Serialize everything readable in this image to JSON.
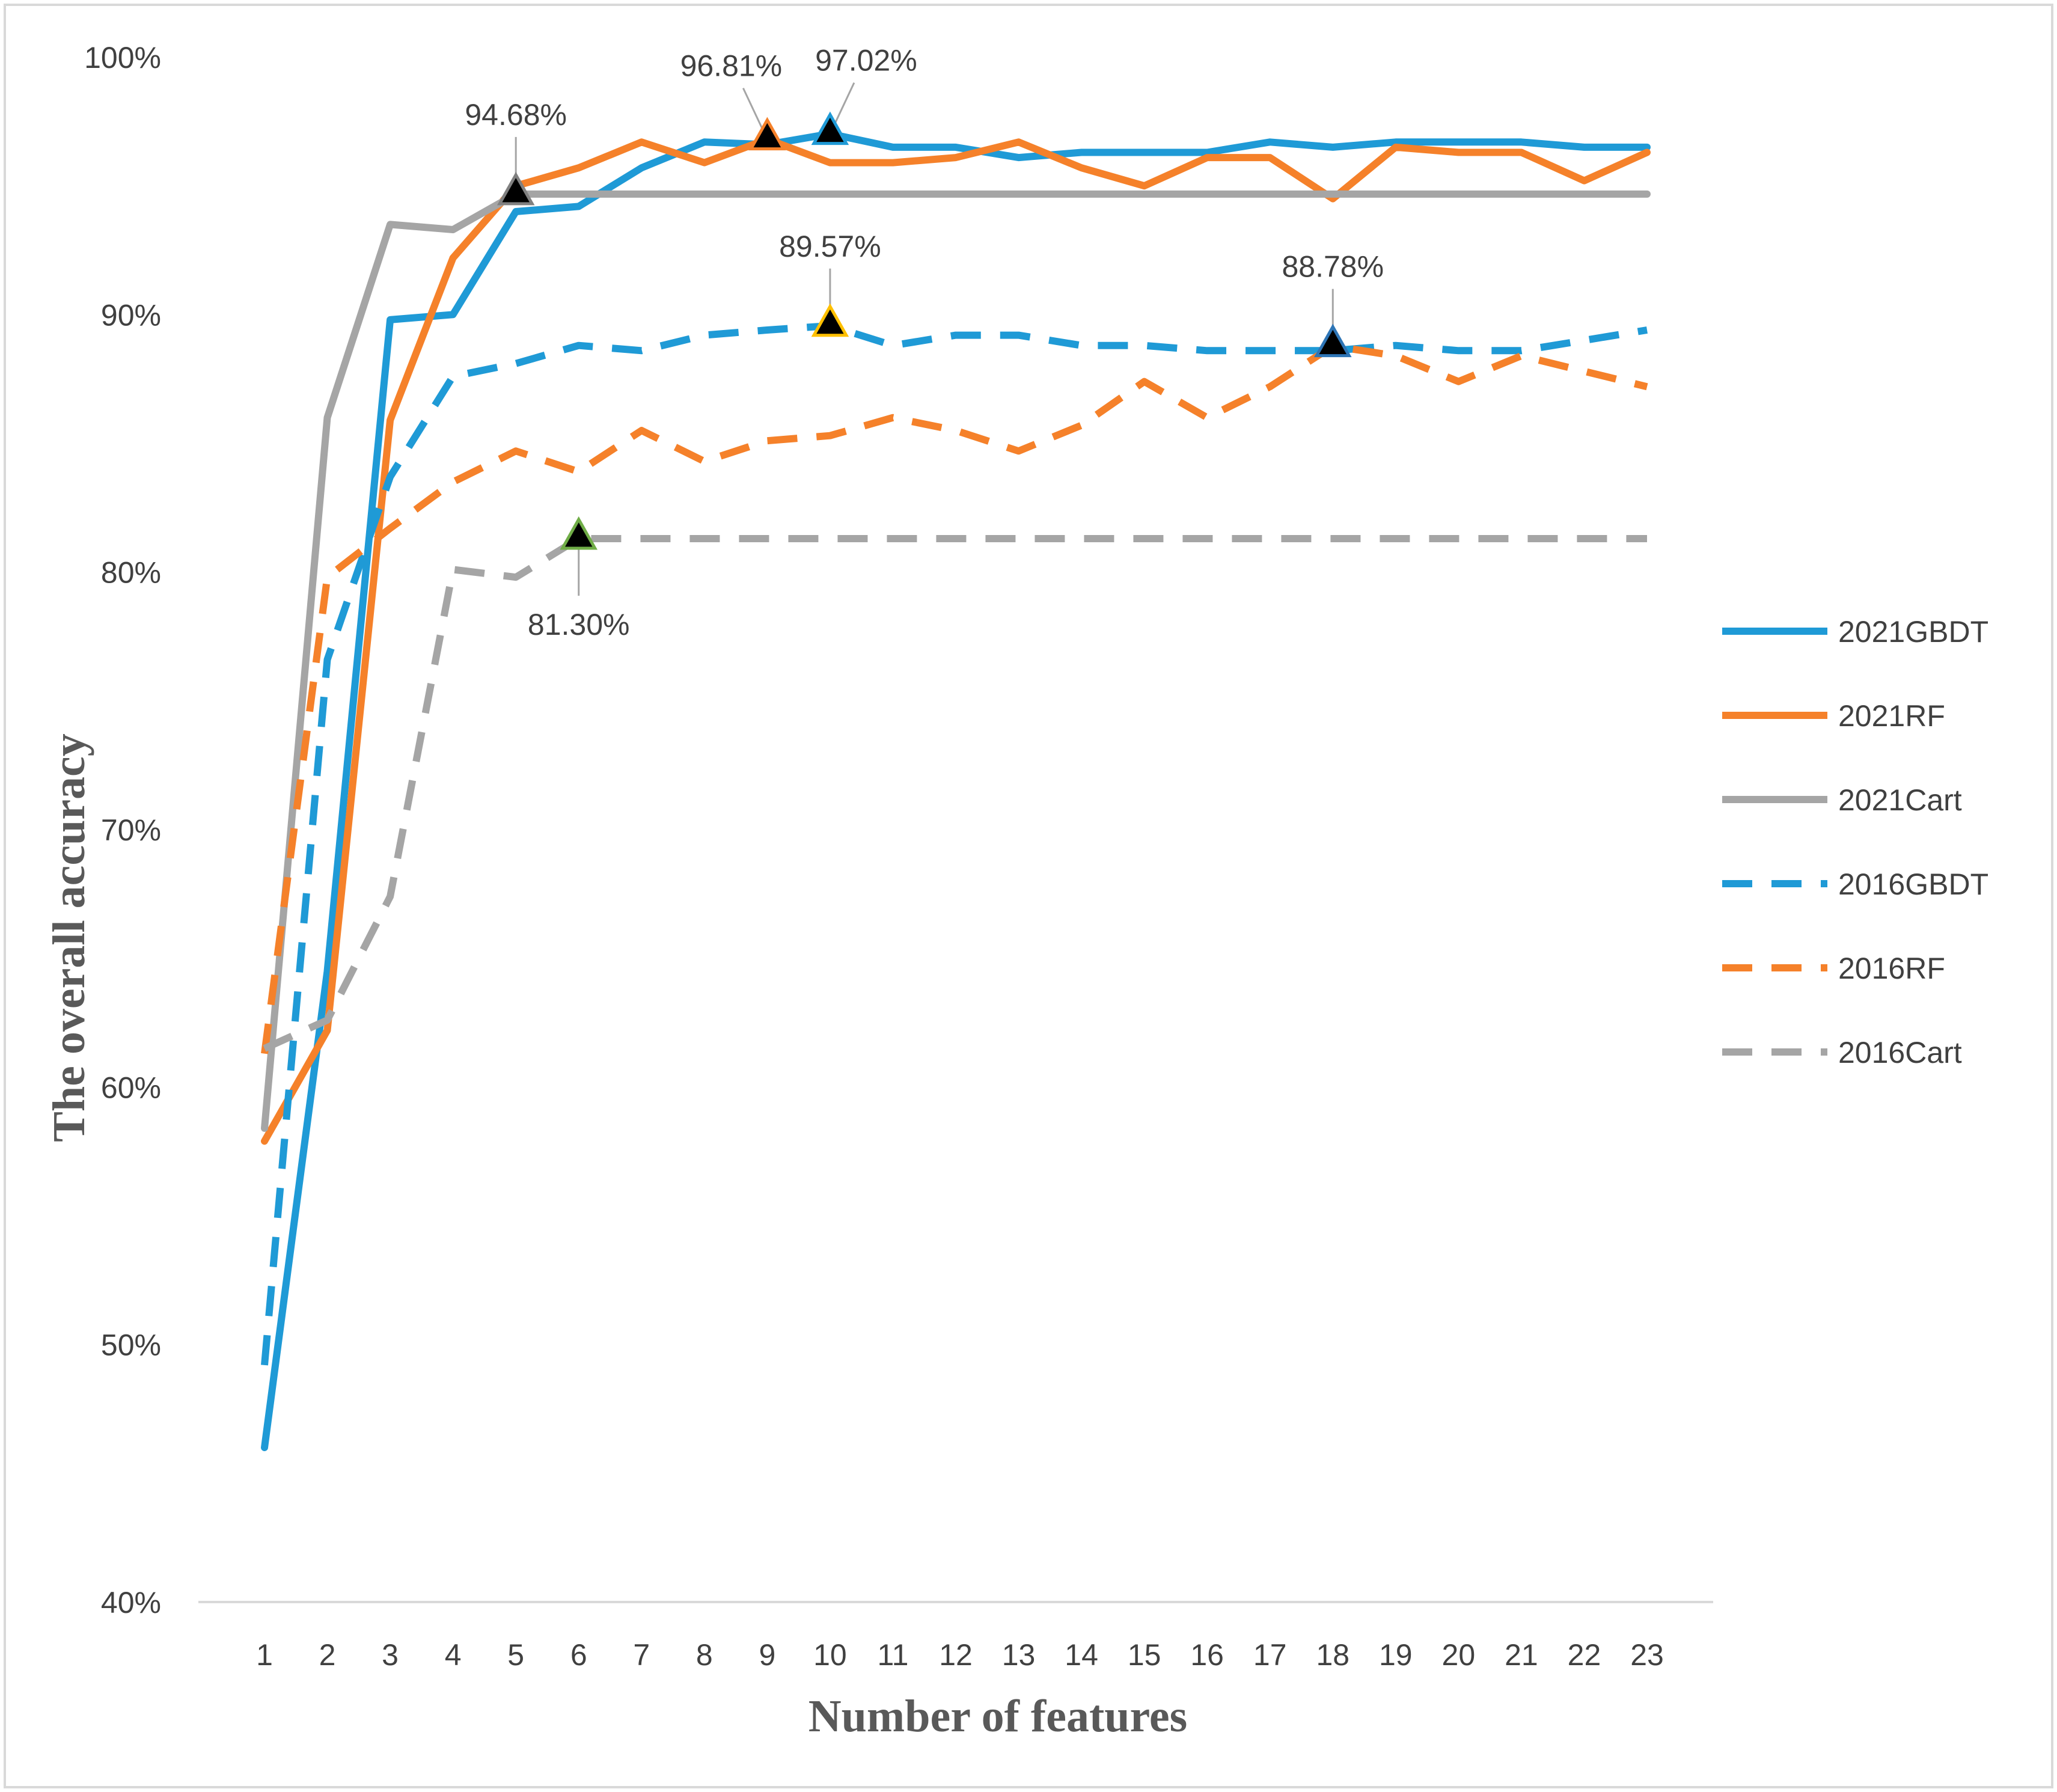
{
  "chart_data": {
    "type": "line",
    "xlabel": "Number of features",
    "ylabel": "The overall accuracy",
    "x": [
      1,
      2,
      3,
      4,
      5,
      6,
      7,
      8,
      9,
      10,
      11,
      12,
      13,
      14,
      15,
      16,
      17,
      18,
      19,
      20,
      21,
      22,
      23
    ],
    "ylim": [
      40,
      100
    ],
    "yticks": [
      40,
      50,
      60,
      70,
      80,
      90,
      100
    ],
    "ytick_labels": [
      "40%",
      "50%",
      "60%",
      "70%",
      "80%",
      "90%",
      "100%"
    ],
    "grid": false,
    "legend_position": "right",
    "series": [
      {
        "name": "2021GBDT",
        "color": "#1f9ad6",
        "dash": "solid",
        "values": [
          46.0,
          64.5,
          89.8,
          90.0,
          94.0,
          94.2,
          95.7,
          96.7,
          96.6,
          97.02,
          96.5,
          96.5,
          96.1,
          96.3,
          96.3,
          96.3,
          96.7,
          96.5,
          96.7,
          96.7,
          96.7,
          96.5,
          96.5
        ]
      },
      {
        "name": "2021RF",
        "color": "#f5812a",
        "dash": "solid",
        "values": [
          57.9,
          62.2,
          85.9,
          92.2,
          95.0,
          95.7,
          96.7,
          95.9,
          96.81,
          95.9,
          95.9,
          96.1,
          96.7,
          95.7,
          95.0,
          96.1,
          96.1,
          94.5,
          96.5,
          96.3,
          96.3,
          95.2,
          96.3
        ]
      },
      {
        "name": "2021Cart",
        "color": "#a5a5a5",
        "dash": "solid",
        "values": [
          58.4,
          86.0,
          93.5,
          93.3,
          94.68,
          94.68,
          94.68,
          94.68,
          94.68,
          94.68,
          94.68,
          94.68,
          94.68,
          94.68,
          94.68,
          94.68,
          94.68,
          94.68,
          94.68,
          94.68,
          94.68,
          94.68,
          94.68
        ]
      },
      {
        "name": "2016GBDT",
        "color": "#1f9ad6",
        "dash": "dashed",
        "values": [
          49.2,
          76.6,
          83.7,
          87.6,
          88.1,
          88.8,
          88.6,
          89.2,
          89.4,
          89.57,
          88.8,
          89.2,
          89.2,
          88.8,
          88.8,
          88.6,
          88.6,
          88.6,
          88.8,
          88.6,
          88.6,
          89.0,
          89.4
        ]
      },
      {
        "name": "2016RF",
        "color": "#f5812a",
        "dash": "dashed",
        "values": [
          61.3,
          79.8,
          81.7,
          83.5,
          84.7,
          83.9,
          85.5,
          84.3,
          85.1,
          85.3,
          86.0,
          85.5,
          84.7,
          85.7,
          87.4,
          86.0,
          87.2,
          88.78,
          88.4,
          87.4,
          88.4,
          87.8,
          87.2
        ]
      },
      {
        "name": "2016Cart",
        "color": "#a5a5a5",
        "dash": "dashed",
        "values": [
          61.5,
          62.6,
          67.4,
          80.1,
          79.8,
          81.3,
          81.3,
          81.3,
          81.3,
          81.3,
          81.3,
          81.3,
          81.3,
          81.3,
          81.3,
          81.3,
          81.3,
          81.3,
          81.3,
          81.3,
          81.3,
          81.3,
          81.3
        ]
      }
    ],
    "annotations": [
      {
        "series": "2021Cart",
        "x": 5,
        "value": 94.68,
        "label": "94.68%",
        "marker_edge": "#808080",
        "position": "above"
      },
      {
        "series": "2021RF",
        "x": 9,
        "value": 96.81,
        "label": "96.81%",
        "marker_edge": "#f5812a",
        "position": "above-left"
      },
      {
        "series": "2021GBDT",
        "x": 10,
        "value": 97.02,
        "label": "97.02%",
        "marker_edge": "#1f9ad6",
        "position": "above-right"
      },
      {
        "series": "2016GBDT",
        "x": 10,
        "value": 89.57,
        "label": "89.57%",
        "marker_edge": "#ffc000",
        "position": "above"
      },
      {
        "series": "2016RF",
        "x": 18,
        "value": 88.78,
        "label": "88.78%",
        "marker_edge": "#2e75b6",
        "position": "above"
      },
      {
        "series": "2016Cart",
        "x": 6,
        "value": 81.3,
        "label": "81.30%",
        "marker_edge": "#70ad47",
        "position": "below"
      }
    ]
  }
}
